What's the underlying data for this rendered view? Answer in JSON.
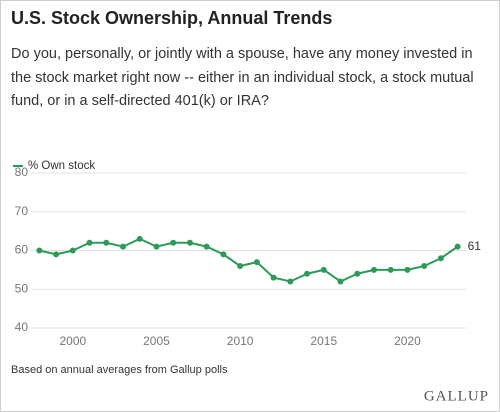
{
  "chart_data": {
    "type": "line",
    "title": "U.S. Stock Ownership, Annual Trends",
    "subtitle": "Do you, personally, or jointly with a spouse, have any money invested in the stock market right now -- either in an individual stock, a stock mutual fund, or in a self-directed 401(k) or IRA?",
    "note": "Based on annual averages from Gallup polls",
    "source": "GALLUP",
    "x": [
      1998,
      1999,
      2000,
      2001,
      2002,
      2003,
      2004,
      2005,
      2006,
      2007,
      2008,
      2009,
      2010,
      2011,
      2012,
      2013,
      2014,
      2015,
      2016,
      2017,
      2018,
      2019,
      2020,
      2021,
      2022,
      2023
    ],
    "series": [
      {
        "name": "% Own stock",
        "color": "#2e9a5a",
        "values": [
          60,
          59,
          60,
          62,
          62,
          61,
          63,
          61,
          62,
          62,
          61,
          59,
          56,
          57,
          53,
          52,
          54,
          55,
          52,
          54,
          55,
          55,
          55,
          56,
          58,
          61
        ]
      }
    ],
    "xlim": [
      1997.5,
      2023.5
    ],
    "xticks": [
      2000,
      2005,
      2010,
      2015,
      2020
    ],
    "ylim": [
      40,
      80
    ],
    "yticks": [
      40,
      50,
      60,
      70,
      80
    ],
    "grid": true,
    "legend": "top-left"
  }
}
